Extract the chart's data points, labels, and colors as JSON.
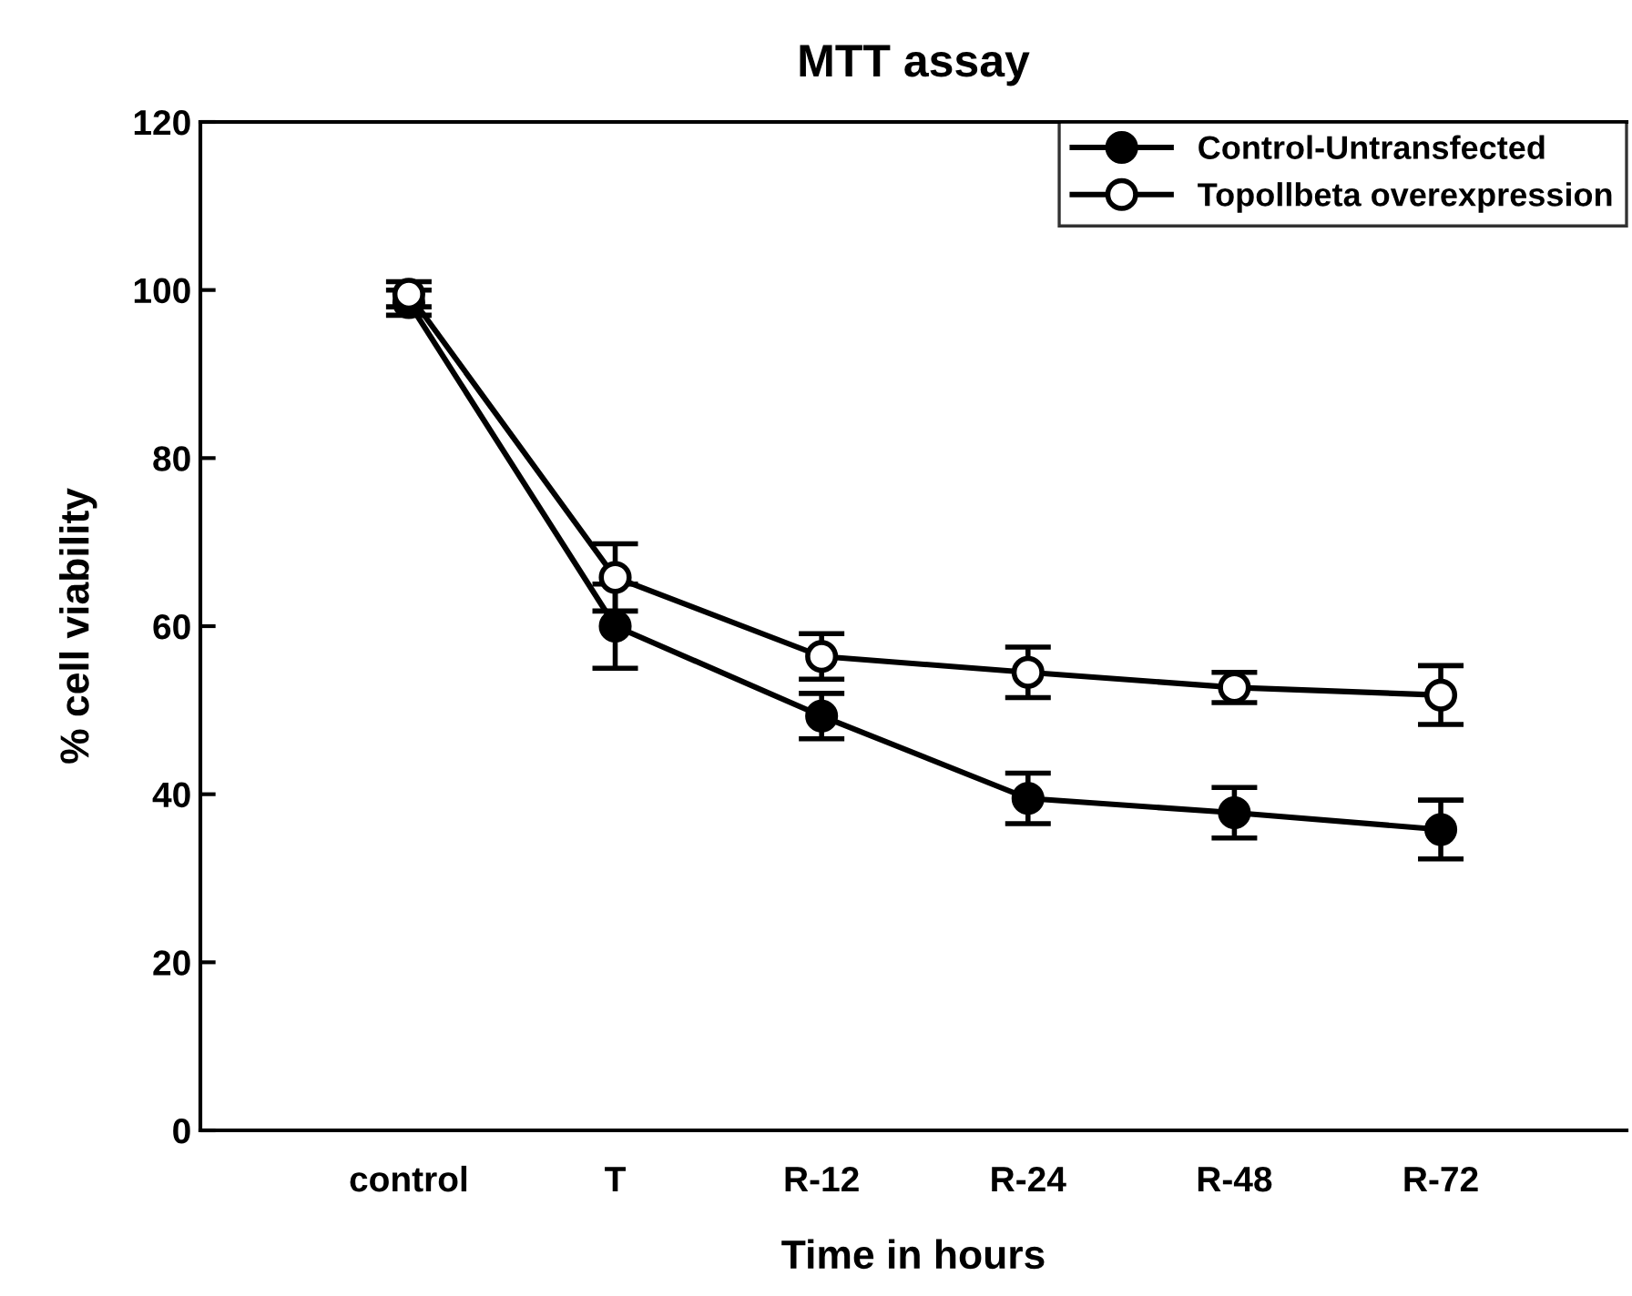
{
  "chart_data": {
    "type": "line",
    "title": "MTT assay",
    "xlabel": "Time in hours",
    "ylabel": "% cell viability",
    "categories": [
      "control",
      "T",
      "R-12",
      "R-24",
      "R-48",
      "R-72"
    ],
    "series": [
      {
        "name": "Control-Untransfected",
        "color": "#000000",
        "values": [
          98.5,
          60,
          49.3,
          39.5,
          37.8,
          35.8
        ],
        "errors": [
          1.5,
          5,
          2.7,
          3,
          3,
          3.5
        ]
      },
      {
        "name": "Topollbeta overexpression",
        "color": "#000000",
        "values": [
          99.5,
          65.8,
          56.4,
          54.5,
          52.7,
          51.8
        ],
        "errors": [
          1.5,
          4,
          2.7,
          3,
          1.8,
          3.5
        ]
      }
    ],
    "ylim": [
      0,
      120
    ],
    "yticks": [
      0,
      20,
      40,
      60,
      80,
      100,
      120
    ],
    "grid": false,
    "legend": "top right",
    "marker": "circle",
    "line_style": "solid"
  }
}
